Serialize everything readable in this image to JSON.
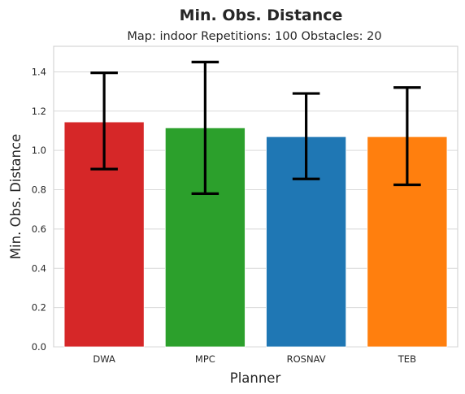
{
  "chart_data": {
    "type": "bar",
    "title": "Min. Obs. Distance",
    "subtitle": "Map: indoor Repetitions: 100 Obstacles: 20",
    "xlabel": "Planner",
    "ylabel": "Min. Obs. Distance",
    "categories": [
      "DWA",
      "MPC",
      "ROSNAV",
      "TEB"
    ],
    "values": [
      1.145,
      1.115,
      1.07,
      1.07
    ],
    "error_low": [
      0.905,
      0.78,
      0.855,
      0.825
    ],
    "error_high": [
      1.395,
      1.45,
      1.29,
      1.32
    ],
    "colors": [
      "#d62728",
      "#2ca02c",
      "#1f77b4",
      "#ff7f0e"
    ],
    "error_color": "#000000",
    "ylim": [
      0,
      1.53
    ],
    "yticks": [
      "0.0",
      "0.2",
      "0.4",
      "0.6",
      "0.8",
      "1.0",
      "1.2",
      "1.4"
    ],
    "grid": "horizontal"
  }
}
